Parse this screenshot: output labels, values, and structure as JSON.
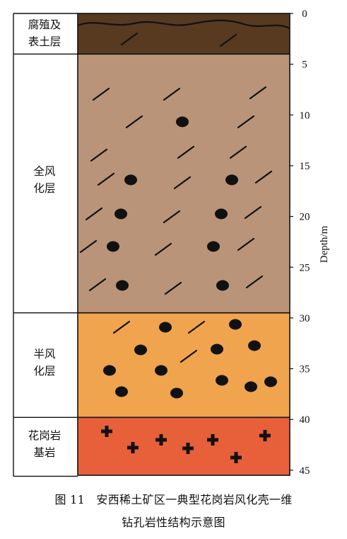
{
  "axis": {
    "label": "Depth/m",
    "min": 0,
    "max": 45,
    "ticks": [
      0,
      5,
      10,
      15,
      20,
      25,
      30,
      35,
      40,
      45
    ]
  },
  "layers": [
    {
      "name": "腐殖及\n表土层",
      "top": 0,
      "bottom": 4,
      "color": "#573a20",
      "symbol": "dash"
    },
    {
      "name": "全风\n化层",
      "top": 4,
      "bottom": 29.5,
      "color": "#b99478",
      "symbol": "dash+dot"
    },
    {
      "name": "半风\n化层",
      "top": 29.5,
      "bottom": 39.8,
      "color": "#f0a44e",
      "symbol": "dot+dash"
    },
    {
      "name": "花岗岩\n基岩",
      "top": 39.8,
      "bottom": 45.5,
      "color": "#e8603a",
      "symbol": "cross"
    }
  ],
  "caption": {
    "line1": "图 11　安西稀土矿区一典型花岗岩风化壳一维",
    "line2": "钻孔岩性结构示意图"
  },
  "colors": {
    "topsoil": "#573a20",
    "fully_weathered": "#b99478",
    "semi_weathered": "#f0a44e",
    "bedrock": "#e8603a",
    "outline": "#111111"
  }
}
